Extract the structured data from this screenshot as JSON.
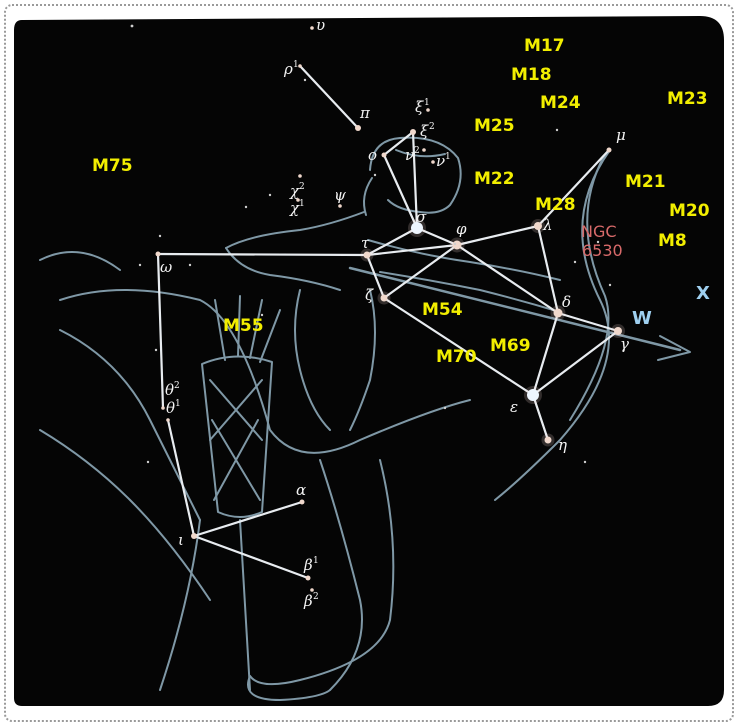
{
  "colors": {
    "sky": "#050505",
    "lines": "#e8ecf0",
    "figure": "#7f98a6",
    "messier": "#f2ee00",
    "ngc": "#d86a6a",
    "blue_label": "#9fd0f0"
  },
  "messier_objects": [
    "M17",
    "M18",
    "M24",
    "M23",
    "M25",
    "M75",
    "M22",
    "M21",
    "M28",
    "M20",
    "M8",
    "M54",
    "M55",
    "M69",
    "M70"
  ],
  "other_labels": {
    "ngc_line1": "NGC",
    "ngc_line2": "6530",
    "w": "W",
    "x": "X"
  },
  "stars": [
    {
      "id": "upsilon",
      "letter": "υ",
      "sup": ""
    },
    {
      "id": "rho1",
      "letter": "ρ",
      "sup": "1"
    },
    {
      "id": "pi",
      "letter": "π",
      "sup": ""
    },
    {
      "id": "xi1",
      "letter": "ξ",
      "sup": "1"
    },
    {
      "id": "xi2",
      "letter": "ξ",
      "sup": "2"
    },
    {
      "id": "omicron",
      "letter": "o",
      "sup": ""
    },
    {
      "id": "nu2",
      "letter": "ν",
      "sup": "2"
    },
    {
      "id": "nu1",
      "letter": "ν",
      "sup": "1"
    },
    {
      "id": "chi2",
      "letter": "χ",
      "sup": "2"
    },
    {
      "id": "chi1",
      "letter": "χ",
      "sup": "1"
    },
    {
      "id": "psi",
      "letter": "ψ",
      "sup": ""
    },
    {
      "id": "sigma",
      "letter": "σ",
      "sup": ""
    },
    {
      "id": "phi",
      "letter": "φ",
      "sup": ""
    },
    {
      "id": "tau",
      "letter": "τ",
      "sup": ""
    },
    {
      "id": "lambda",
      "letter": "λ",
      "sup": ""
    },
    {
      "id": "mu",
      "letter": "μ",
      "sup": ""
    },
    {
      "id": "omega",
      "letter": "ω",
      "sup": ""
    },
    {
      "id": "zeta",
      "letter": "ζ",
      "sup": ""
    },
    {
      "id": "delta",
      "letter": "δ",
      "sup": ""
    },
    {
      "id": "gamma",
      "letter": "γ",
      "sup": ""
    },
    {
      "id": "epsilon",
      "letter": "ε",
      "sup": ""
    },
    {
      "id": "eta",
      "letter": "η",
      "sup": ""
    },
    {
      "id": "theta2",
      "letter": "θ",
      "sup": "2"
    },
    {
      "id": "theta1",
      "letter": "θ",
      "sup": "1"
    },
    {
      "id": "alpha",
      "letter": "α",
      "sup": ""
    },
    {
      "id": "iota",
      "letter": "ι",
      "sup": ""
    },
    {
      "id": "beta1",
      "letter": "β",
      "sup": "1"
    },
    {
      "id": "beta2",
      "letter": "β",
      "sup": "2"
    }
  ],
  "connections": [
    [
      "pi",
      "rho1"
    ],
    [
      "xi2",
      "omicron"
    ],
    [
      "omicron",
      "sigma"
    ],
    [
      "xi2",
      "sigma"
    ],
    [
      "sigma",
      "tau"
    ],
    [
      "sigma",
      "phi"
    ],
    [
      "tau",
      "phi"
    ],
    [
      "tau",
      "omega"
    ],
    [
      "phi",
      "lambda"
    ],
    [
      "lambda",
      "mu"
    ],
    [
      "phi",
      "zeta"
    ],
    [
      "tau",
      "zeta"
    ],
    [
      "phi",
      "delta"
    ],
    [
      "lambda",
      "delta"
    ],
    [
      "zeta",
      "epsilon"
    ],
    [
      "delta",
      "epsilon"
    ],
    [
      "delta",
      "gamma"
    ],
    [
      "gamma",
      "epsilon"
    ],
    [
      "epsilon",
      "eta"
    ],
    [
      "omega",
      "theta2"
    ],
    [
      "theta1",
      "iota"
    ],
    [
      "iota",
      "alpha"
    ],
    [
      "iota",
      "beta1"
    ]
  ]
}
